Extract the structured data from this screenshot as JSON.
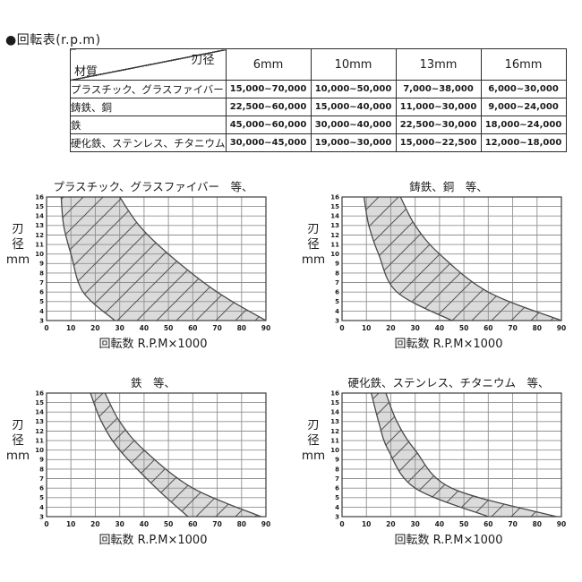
{
  "page": {
    "title": "●回転表(r.p.m)"
  },
  "table": {
    "corner_top_right": "刃径",
    "corner_bottom_left": "材質",
    "columns": [
      "6mm",
      "10mm",
      "13mm",
      "16mm"
    ],
    "rows": [
      {
        "material": "プラスチック、グラスファイバー",
        "values": [
          "15,000~70,000",
          "10,000~50,000",
          "7,000~38,000",
          "6,000~30,000"
        ]
      },
      {
        "material": "鋳鉄、銅",
        "values": [
          "22,500~60,000",
          "15,000~40,000",
          "11,000~30,000",
          "9,000~24,000"
        ]
      },
      {
        "material": "鉄",
        "values": [
          "45,000~60,000",
          "30,000~40,000",
          "22,500~30,000",
          "18,000~24,000"
        ]
      },
      {
        "material": "硬化鉄、ステンレス、チタニウム",
        "values": [
          "30,000~45,000",
          "19,000~30,000",
          "15,000~22,500",
          "12,000~18,000"
        ]
      }
    ]
  },
  "axes": {
    "ylabel_lines": [
      "刃",
      "径",
      "mm"
    ],
    "xlabel": "回転数 R.P.M×1000",
    "xticks": [
      0,
      10,
      20,
      30,
      40,
      50,
      60,
      70,
      80,
      90
    ],
    "yticks": [
      3,
      4,
      5,
      6,
      7,
      8,
      9,
      10,
      11,
      12,
      13,
      14,
      15,
      16
    ],
    "xlim": [
      0,
      90
    ],
    "ylim": [
      3,
      16
    ]
  },
  "colors": {
    "band_fill": "#dbdbdb",
    "hatch_line": "#555555",
    "grid_line": "#8f8f8f",
    "curve_line": "#4a4a4a",
    "border_line": "#3c3c3c",
    "text": "#1c1c1c"
  },
  "chart_data": [
    {
      "type": "area",
      "title": "プラスチック、グラスファイバー　等、",
      "xlabel": "回転数 R.P.M×1000",
      "ylabel": "刃径 mm",
      "xlim": [
        0,
        90
      ],
      "ylim": [
        3,
        16
      ],
      "band_lower_rpm_by_dia": [
        [
          6,
          16
        ],
        [
          7,
          13
        ],
        [
          10,
          10
        ],
        [
          15,
          6
        ],
        [
          28,
          3
        ]
      ],
      "band_upper_rpm_by_dia": [
        [
          30,
          16
        ],
        [
          38,
          13
        ],
        [
          50,
          10
        ],
        [
          70,
          6
        ],
        [
          90,
          3
        ]
      ]
    },
    {
      "type": "area",
      "title": "鋳鉄、銅　等、",
      "xlabel": "回転数 R.P.M×1000",
      "ylabel": "刃径 mm",
      "xlim": [
        0,
        90
      ],
      "ylim": [
        3,
        16
      ],
      "band_lower_rpm_by_dia": [
        [
          9,
          16
        ],
        [
          11,
          13
        ],
        [
          15,
          10
        ],
        [
          22.5,
          6
        ],
        [
          45,
          3
        ]
      ],
      "band_upper_rpm_by_dia": [
        [
          24,
          16
        ],
        [
          30,
          13
        ],
        [
          40,
          10
        ],
        [
          60,
          6
        ],
        [
          90,
          3
        ]
      ]
    },
    {
      "type": "area",
      "title": "鉄　等、",
      "xlabel": "回転数 R.P.M×1000",
      "ylabel": "刃径 mm",
      "xlim": [
        0,
        90
      ],
      "ylim": [
        3,
        16
      ],
      "band_lower_rpm_by_dia": [
        [
          18,
          16
        ],
        [
          22.5,
          13
        ],
        [
          30,
          10
        ],
        [
          45,
          6
        ],
        [
          58,
          3
        ]
      ],
      "band_upper_rpm_by_dia": [
        [
          24,
          16
        ],
        [
          30,
          13
        ],
        [
          40,
          10
        ],
        [
          60,
          6
        ],
        [
          88,
          3
        ]
      ]
    },
    {
      "type": "area",
      "title": "硬化鉄、ステンレス、チタニウム　等、",
      "xlabel": "回転数 R.P.M×1000",
      "ylabel": "刃径 mm",
      "xlim": [
        0,
        90
      ],
      "ylim": [
        3,
        16
      ],
      "band_lower_rpm_by_dia": [
        [
          12,
          16
        ],
        [
          15,
          13
        ],
        [
          19,
          10
        ],
        [
          30,
          6
        ],
        [
          60,
          3
        ]
      ],
      "band_upper_rpm_by_dia": [
        [
          18,
          16
        ],
        [
          22.5,
          13
        ],
        [
          30,
          10
        ],
        [
          45,
          6
        ],
        [
          88,
          3
        ]
      ]
    }
  ]
}
